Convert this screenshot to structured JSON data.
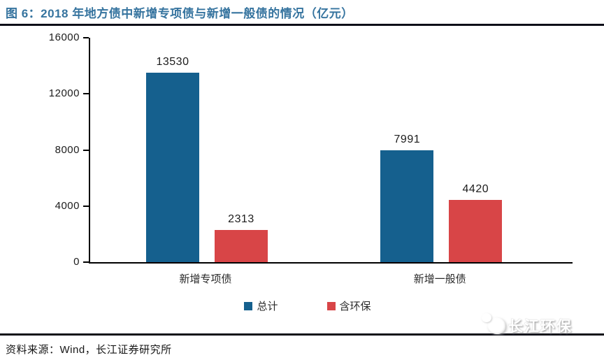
{
  "figure": {
    "source": "资料来源：Wind，长江证券研究所",
    "watermark": "长江环保",
    "watermark_icon": "publisher-logo",
    "divider_color": "#0d0e18",
    "title_color": "#36749f"
  },
  "chart_data": {
    "type": "bar",
    "title": "图 6：2018 年地方债中新增专项债与新增一般债的情况（亿元）",
    "categories": [
      "新增专项债",
      "新增一般债"
    ],
    "series": [
      {
        "name": "总计",
        "color": "#15608e",
        "values": [
          13530,
          7991
        ]
      },
      {
        "name": "含环保",
        "color": "#d84547",
        "values": [
          2313,
          4420
        ]
      }
    ],
    "ylim": [
      0,
      16000
    ],
    "yticks": [
      0,
      4000,
      8000,
      12000,
      16000
    ],
    "xlabel": "",
    "ylabel": "",
    "grid": false,
    "data_labels": true,
    "legend_position": "bottom"
  }
}
